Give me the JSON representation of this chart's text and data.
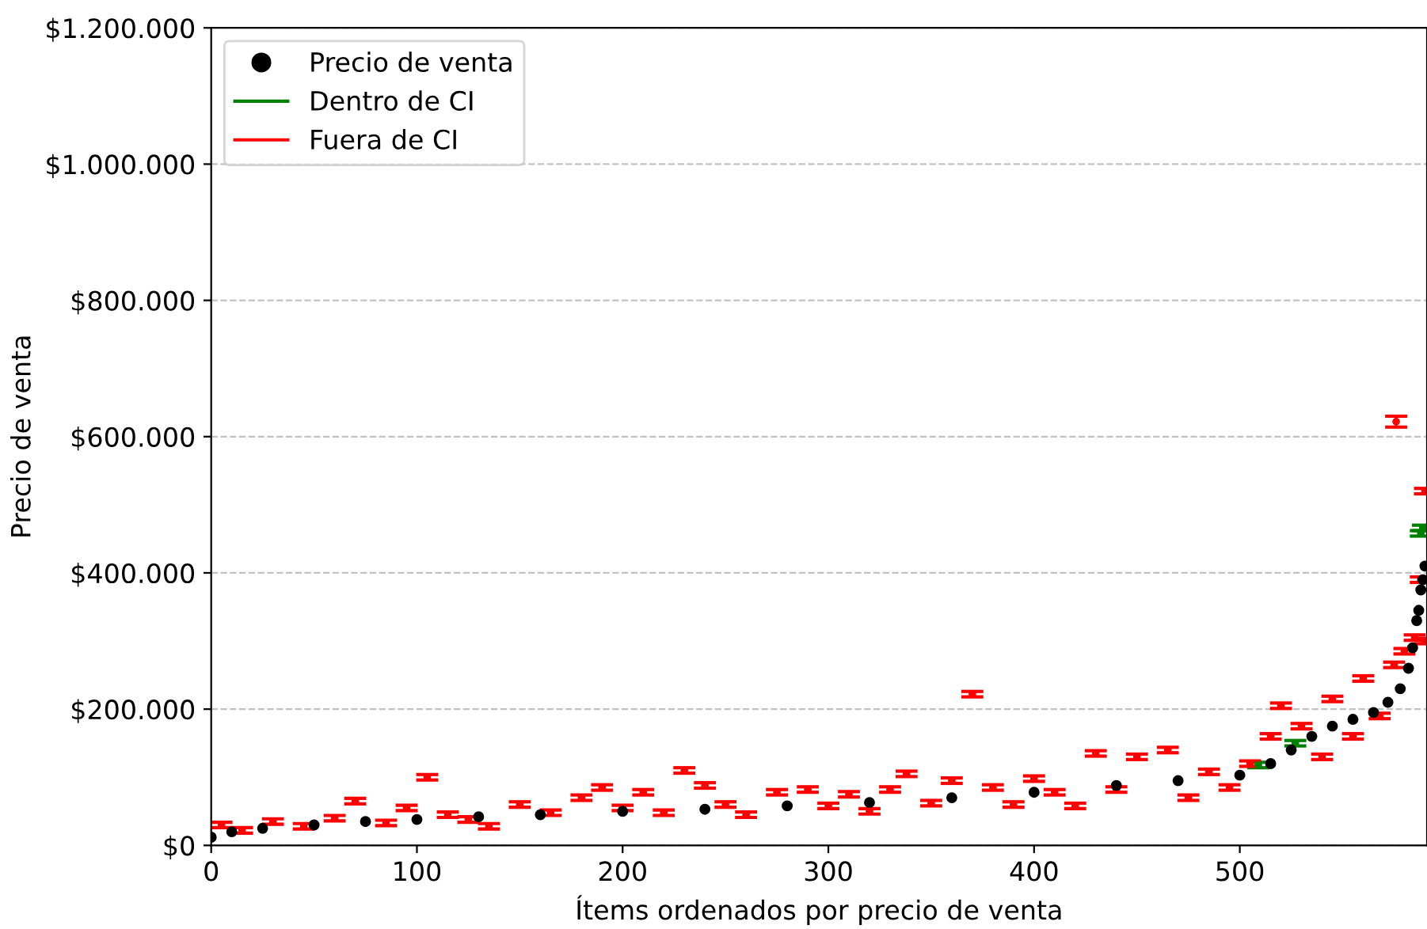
{
  "chart_data": {
    "type": "scatter",
    "xlabel": "Ítems ordenados por precio de venta",
    "ylabel": "Precio de venta",
    "xlim": [
      0,
      591
    ],
    "xticks": [
      0,
      100,
      200,
      300,
      400,
      500
    ],
    "ylim": [
      0,
      1200000
    ],
    "yticks": [
      {
        "value": 0,
        "label": "$0"
      },
      {
        "value": 200000,
        "label": "$200.000"
      },
      {
        "value": 400000,
        "label": "$400.000"
      },
      {
        "value": 600000,
        "label": "$600.000"
      },
      {
        "value": 800000,
        "label": "$800.000"
      },
      {
        "value": 1000000,
        "label": "$1.000.000"
      },
      {
        "value": 1200000,
        "label": "$1.200.000"
      }
    ],
    "grid": "y",
    "legend": "top left",
    "series": [
      {
        "name": "Precio de venta",
        "marker": "circle",
        "color": "#000000",
        "x": [
          0,
          10,
          25,
          50,
          75,
          100,
          130,
          160,
          200,
          240,
          280,
          320,
          360,
          400,
          440,
          470,
          500,
          515,
          525,
          535,
          545,
          555,
          565,
          572,
          578,
          582,
          584,
          586,
          587,
          588,
          589,
          590
        ],
        "values": [
          12000,
          20000,
          25000,
          30000,
          35000,
          38000,
          42000,
          45000,
          50000,
          53000,
          58000,
          63000,
          70000,
          78000,
          88000,
          95000,
          103000,
          120000,
          140000,
          160000,
          175000,
          185000,
          195000,
          210000,
          230000,
          260000,
          290000,
          330000,
          345000,
          375000,
          390000,
          410000
        ]
      },
      {
        "name": "Dentro de CI",
        "color": "#008000",
        "x": [
          509,
          527,
          588,
          589
        ],
        "values": [
          118000,
          150000,
          458000,
          466000
        ],
        "errors": [
          [
            114000,
            122000
          ],
          [
            146000,
            154000
          ],
          [
            454000,
            462000
          ],
          [
            462000,
            470000
          ]
        ]
      },
      {
        "name": "Fuera de CI",
        "color": "#ff0000",
        "x": [
          5,
          15,
          30,
          45,
          60,
          70,
          85,
          95,
          105,
          115,
          125,
          135,
          150,
          165,
          180,
          190,
          200,
          210,
          220,
          230,
          240,
          250,
          260,
          275,
          290,
          300,
          310,
          320,
          330,
          338,
          350,
          360,
          370,
          380,
          390,
          400,
          410,
          420,
          430,
          440,
          450,
          465,
          475,
          485,
          495,
          505,
          515,
          520,
          530,
          540,
          545,
          555,
          560,
          568,
          575,
          576,
          580,
          585,
          588,
          590,
          590
        ],
        "values": [
          30000,
          22000,
          35000,
          28000,
          40000,
          65000,
          33000,
          55000,
          100000,
          45000,
          38000,
          28000,
          60000,
          48000,
          70000,
          85000,
          55000,
          78000,
          48000,
          110000,
          88000,
          60000,
          45000,
          78000,
          82000,
          58000,
          75000,
          50000,
          82000,
          105000,
          62000,
          95000,
          222000,
          85000,
          60000,
          98000,
          78000,
          58000,
          135000,
          82000,
          130000,
          140000,
          70000,
          108000,
          85000,
          120000,
          160000,
          205000,
          175000,
          130000,
          215000,
          160000,
          245000,
          190000,
          265000,
          622000,
          285000,
          305000,
          390000,
          520000,
          300000
        ],
        "errors": [
          [
            26000,
            34000
          ],
          [
            18000,
            26000
          ],
          [
            31000,
            39000
          ],
          [
            24000,
            32000
          ],
          [
            36000,
            44000
          ],
          [
            61000,
            69000
          ],
          [
            29000,
            37000
          ],
          [
            51000,
            59000
          ],
          [
            96000,
            104000
          ],
          [
            41000,
            49000
          ],
          [
            34000,
            42000
          ],
          [
            24000,
            32000
          ],
          [
            56000,
            64000
          ],
          [
            44000,
            52000
          ],
          [
            66000,
            74000
          ],
          [
            81000,
            89000
          ],
          [
            51000,
            59000
          ],
          [
            74000,
            82000
          ],
          [
            44000,
            52000
          ],
          [
            106000,
            114000
          ],
          [
            84000,
            92000
          ],
          [
            56000,
            64000
          ],
          [
            41000,
            49000
          ],
          [
            74000,
            82000
          ],
          [
            78000,
            86000
          ],
          [
            54000,
            62000
          ],
          [
            71000,
            79000
          ],
          [
            46000,
            54000
          ],
          [
            78000,
            86000
          ],
          [
            101000,
            109000
          ],
          [
            58000,
            66000
          ],
          [
            91000,
            99000
          ],
          [
            218000,
            226000
          ],
          [
            81000,
            89000
          ],
          [
            56000,
            64000
          ],
          [
            94000,
            102000
          ],
          [
            74000,
            82000
          ],
          [
            54000,
            62000
          ],
          [
            131000,
            139000
          ],
          [
            78000,
            86000
          ],
          [
            126000,
            134000
          ],
          [
            136000,
            144000
          ],
          [
            66000,
            74000
          ],
          [
            104000,
            112000
          ],
          [
            81000,
            89000
          ],
          [
            116000,
            124000
          ],
          [
            156000,
            164000
          ],
          [
            201000,
            209000
          ],
          [
            171000,
            179000
          ],
          [
            126000,
            134000
          ],
          [
            211000,
            219000
          ],
          [
            156000,
            164000
          ],
          [
            241000,
            249000
          ],
          [
            186000,
            194000
          ],
          [
            261000,
            269000
          ],
          [
            614000,
            630000
          ],
          [
            281000,
            289000
          ],
          [
            301000,
            309000
          ],
          [
            386000,
            394000
          ],
          [
            516000,
            524000
          ],
          [
            296000,
            304000
          ]
        ]
      }
    ]
  }
}
